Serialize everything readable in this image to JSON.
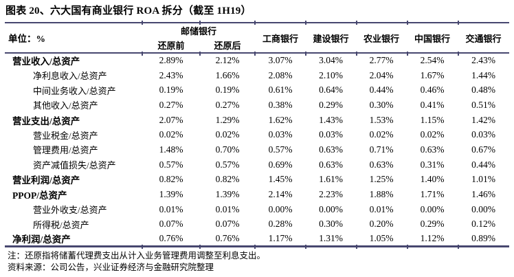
{
  "title": "图表 20、六大国有商业银行 ROA 拆分（截至 1H19）",
  "colors": {
    "rule_line": "#47476f",
    "text": "#000000",
    "background": "#ffffff"
  },
  "table": {
    "unit_label": "单位：%",
    "group_header": {
      "label": "邮储银行",
      "sub_columns": [
        "还原前",
        "还原后"
      ]
    },
    "bank_columns": [
      "工商银行",
      "建设银行",
      "农业银行",
      "中国银行",
      "交通银行"
    ],
    "rows": [
      {
        "label": "营业收入/总资产",
        "bold": true,
        "indent": false,
        "values": [
          "2.89%",
          "2.12%",
          "3.07%",
          "3.04%",
          "2.77%",
          "2.54%",
          "2.43%"
        ]
      },
      {
        "label": "净利息收入/总资产",
        "bold": false,
        "indent": true,
        "values": [
          "2.43%",
          "1.66%",
          "2.08%",
          "2.10%",
          "2.04%",
          "1.67%",
          "1.44%"
        ]
      },
      {
        "label": "中间业务收入/总资产",
        "bold": false,
        "indent": true,
        "values": [
          "0.19%",
          "0.19%",
          "0.61%",
          "0.64%",
          "0.44%",
          "0.46%",
          "0.48%"
        ]
      },
      {
        "label": "其他收入/总资产",
        "bold": false,
        "indent": true,
        "values": [
          "0.27%",
          "0.27%",
          "0.38%",
          "0.29%",
          "0.30%",
          "0.41%",
          "0.51%"
        ]
      },
      {
        "label": "营业支出/总资产",
        "bold": true,
        "indent": false,
        "values": [
          "2.07%",
          "1.29%",
          "1.62%",
          "1.43%",
          "1.53%",
          "1.15%",
          "1.42%"
        ]
      },
      {
        "label": "营业税金/总资产",
        "bold": false,
        "indent": true,
        "values": [
          "0.02%",
          "0.02%",
          "0.03%",
          "0.03%",
          "0.02%",
          "0.02%",
          "0.03%"
        ]
      },
      {
        "label": "管理费用/总资产",
        "bold": false,
        "indent": true,
        "values": [
          "1.48%",
          "0.70%",
          "0.57%",
          "0.63%",
          "0.71%",
          "0.63%",
          "0.67%"
        ]
      },
      {
        "label": "资产减值损失/总资产",
        "bold": false,
        "indent": true,
        "values": [
          "0.57%",
          "0.57%",
          "0.69%",
          "0.63%",
          "0.63%",
          "0.31%",
          "0.44%"
        ]
      },
      {
        "label": "营业利润/总资产",
        "bold": true,
        "indent": false,
        "values": [
          "0.82%",
          "0.82%",
          "1.45%",
          "1.61%",
          "1.25%",
          "1.40%",
          "1.01%"
        ]
      },
      {
        "label": "PPOP/总资产",
        "bold": true,
        "indent": false,
        "values": [
          "1.39%",
          "1.39%",
          "2.14%",
          "2.23%",
          "1.88%",
          "1.71%",
          "1.46%"
        ]
      },
      {
        "label": "营业外收支/总资产",
        "bold": false,
        "indent": true,
        "values": [
          "0.01%",
          "0.01%",
          "0.00%",
          "0.00%",
          "0.01%",
          "0.00%",
          "0.00%"
        ]
      },
      {
        "label": "所得税/总资产",
        "bold": false,
        "indent": true,
        "values": [
          "0.07%",
          "0.07%",
          "0.28%",
          "0.30%",
          "0.20%",
          "0.29%",
          "0.12%"
        ]
      },
      {
        "label": "净利润/总资产",
        "bold": true,
        "indent": false,
        "values": [
          "0.76%",
          "0.76%",
          "1.17%",
          "1.31%",
          "1.05%",
          "1.12%",
          "0.89%"
        ]
      }
    ]
  },
  "footnotes": {
    "note": "注：还原指将储蓄代理费支出从计入业务管理费用调整至利息支出。",
    "source": "资料来源：公司公告，兴业证券经济与金融研究院整理"
  }
}
